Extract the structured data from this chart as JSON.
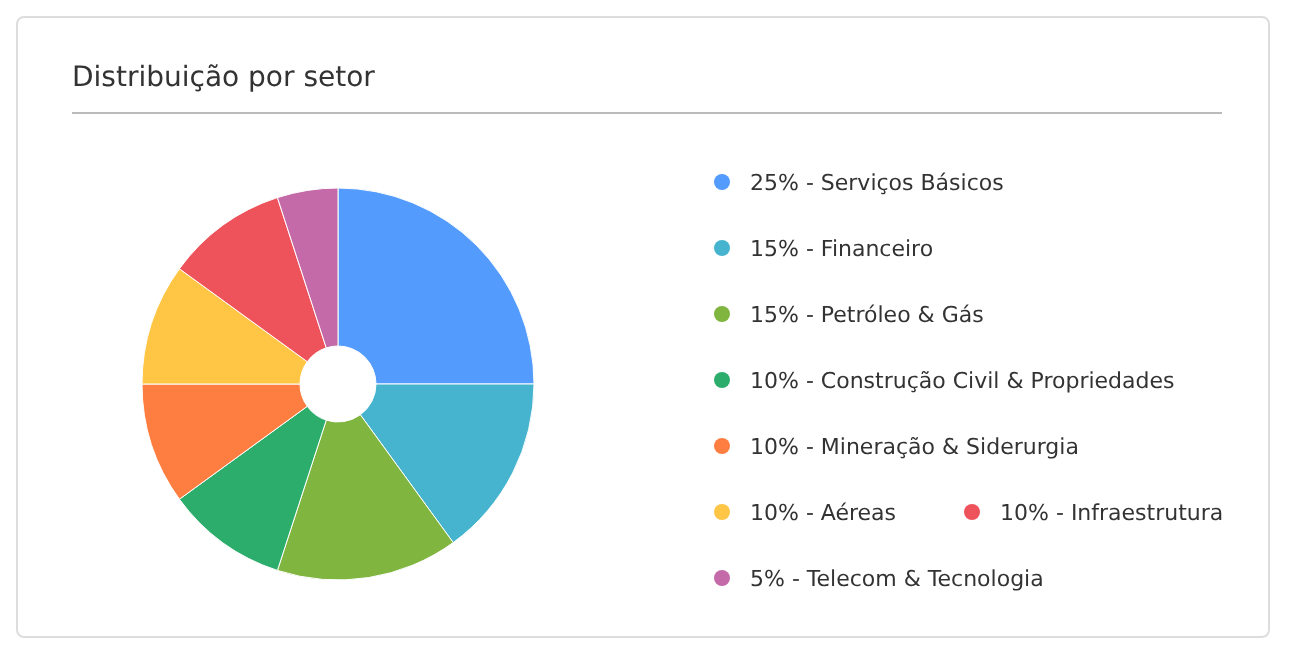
{
  "chart_data": {
    "type": "donut",
    "title": "Distribuição por setor",
    "categories": [
      "25% - Serviços Básicos",
      "15% - Financeiro",
      "15% - Petróleo & Gás",
      "10% - Construção Civil & Propriedades",
      "10% - Mineração & Siderurgia",
      "10% - Aéreas",
      "10% - Infraestrutura",
      "5% - Telecom & Tecnologia"
    ],
    "values": [
      25,
      15,
      15,
      10,
      10,
      10,
      10,
      5
    ],
    "colors": [
      "#539cfd",
      "#46b4cf",
      "#80b53f",
      "#2dad6c",
      "#fe7e41",
      "#fec644",
      "#ee535c",
      "#c46aa8"
    ],
    "legend": "right"
  }
}
